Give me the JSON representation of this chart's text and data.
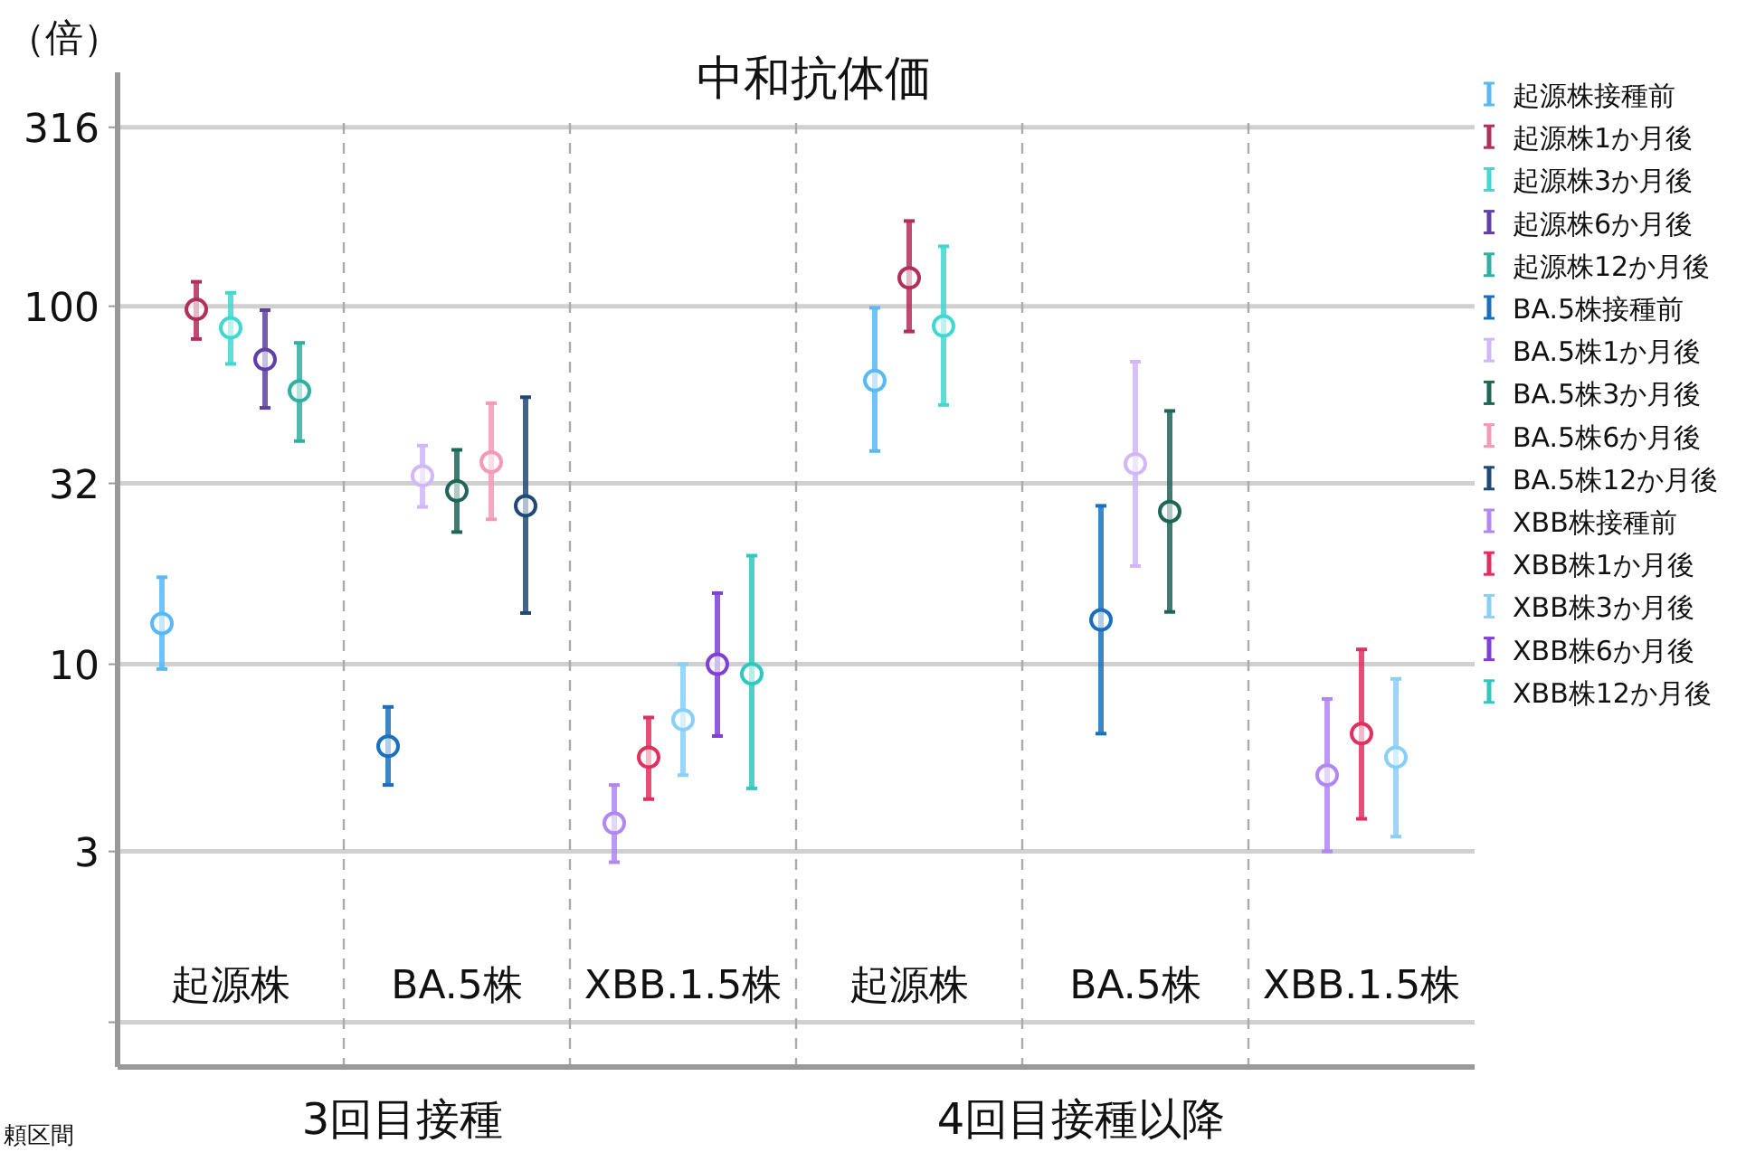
{
  "chart_data": {
    "type": "scatter",
    "title": "中和抗体価",
    "ylabel": "（倍）",
    "log": true,
    "ylim": [
      0.75,
      450
    ],
    "yticks": [
      {
        "value": 1,
        "label": null
      },
      3,
      10,
      32,
      100,
      316
    ],
    "grid": "y",
    "legend": "right",
    "marker": "circle",
    "categories": [
      "起源株",
      "BA.5株",
      "XBB.1.5株",
      "起源株",
      "BA.5株",
      "XBB.1.5株"
    ],
    "annotations": [
      "3回目接種",
      "4回目接種以降",
      "頼区間"
    ],
    "series": [
      {
        "name": "起源株接種前",
        "color": "#5ab8f5",
        "values": [
          13.0,
          null,
          null,
          62,
          null,
          null
        ],
        "errors": [
          [
            9.7,
            17.5
          ],
          null,
          null,
          [
            39.4,
            99
          ],
          null,
          null
        ]
      },
      {
        "name": "起源株1か月後",
        "color": "#b0305a",
        "values": [
          98,
          null,
          null,
          120,
          null,
          null
        ],
        "errors": [
          [
            81,
            117
          ],
          null,
          null,
          [
            85,
            173
          ],
          null,
          null
        ]
      },
      {
        "name": "起源株3か月後",
        "color": "#40d8d0",
        "values": [
          87,
          null,
          null,
          88,
          null,
          null
        ],
        "errors": [
          [
            69,
            109
          ],
          null,
          null,
          [
            53,
            147
          ],
          null,
          null
        ]
      },
      {
        "name": "起源株6か月後",
        "color": "#6040a8",
        "values": [
          71,
          null,
          null,
          null,
          null,
          null
        ],
        "errors": [
          [
            52,
            97.5
          ],
          null,
          null,
          null,
          null,
          null
        ]
      },
      {
        "name": "起源株12か月後",
        "color": "#30b0a0",
        "values": [
          58,
          null,
          null,
          null,
          null,
          null
        ],
        "errors": [
          [
            42,
            79
          ],
          null,
          null,
          null,
          null,
          null
        ]
      },
      {
        "name": "BA.5株接種前",
        "color": "#1a70c0",
        "values": [
          null,
          5.9,
          null,
          null,
          13.3,
          null
        ],
        "errors": [
          null,
          [
            4.6,
            7.6
          ],
          null,
          null,
          [
            6.4,
            27.7
          ],
          null
        ]
      },
      {
        "name": "BA.5株1か月後",
        "color": "#d0b8f8",
        "values": [
          null,
          33.6,
          null,
          null,
          36.3,
          null
        ],
        "errors": [
          null,
          [
            27.5,
            40.8
          ],
          null,
          null,
          [
            18.8,
            70
          ],
          null
        ]
      },
      {
        "name": "BA.5株3か月後",
        "color": "#1e6656",
        "values": [
          null,
          30.5,
          null,
          null,
          26.7,
          null
        ],
        "errors": [
          null,
          [
            23.4,
            39.7
          ],
          null,
          null,
          [
            14.0,
            51
          ],
          null
        ]
      },
      {
        "name": "BA.5株6か月後",
        "color": "#f49ab8",
        "values": [
          null,
          36.7,
          null,
          null,
          null,
          null
        ],
        "errors": [
          null,
          [
            25.4,
            53.6
          ],
          null,
          null,
          null,
          null
        ]
      },
      {
        "name": "BA.5株12か月後",
        "color": "#1f4a78",
        "values": [
          null,
          27.7,
          null,
          null,
          null,
          null
        ],
        "errors": [
          null,
          [
            13.9,
            55.7
          ],
          null,
          null,
          null,
          null
        ]
      },
      {
        "name": "XBB株接種前",
        "color": "#b088f0",
        "values": [
          null,
          null,
          3.6,
          null,
          null,
          4.9
        ],
        "errors": [
          null,
          null,
          [
            2.8,
            4.6
          ],
          null,
          null,
          [
            3.0,
            8.0
          ]
        ]
      },
      {
        "name": "XBB株1か月後",
        "color": "#e03060",
        "values": [
          null,
          null,
          5.5,
          null,
          null,
          6.4
        ],
        "errors": [
          null,
          null,
          [
            4.2,
            7.1
          ],
          null,
          null,
          [
            3.7,
            11.0
          ]
        ]
      },
      {
        "name": "XBB株3か月後",
        "color": "#88d0f8",
        "values": [
          null,
          null,
          7.0,
          null,
          null,
          5.5
        ],
        "errors": [
          null,
          null,
          [
            4.9,
            10.0
          ],
          null,
          null,
          [
            3.3,
            9.1
          ]
        ]
      },
      {
        "name": "XBB株6か月後",
        "color": "#8040d8",
        "values": [
          null,
          null,
          10.0,
          null,
          null,
          null
        ],
        "errors": [
          null,
          null,
          [
            6.3,
            15.8
          ],
          null,
          null,
          null
        ]
      },
      {
        "name": "XBB株12か月後",
        "color": "#30c8c0",
        "values": [
          null,
          null,
          9.4,
          null,
          null,
          null
        ],
        "errors": [
          null,
          null,
          [
            4.5,
            20.1
          ],
          null,
          null,
          null
        ]
      }
    ]
  }
}
